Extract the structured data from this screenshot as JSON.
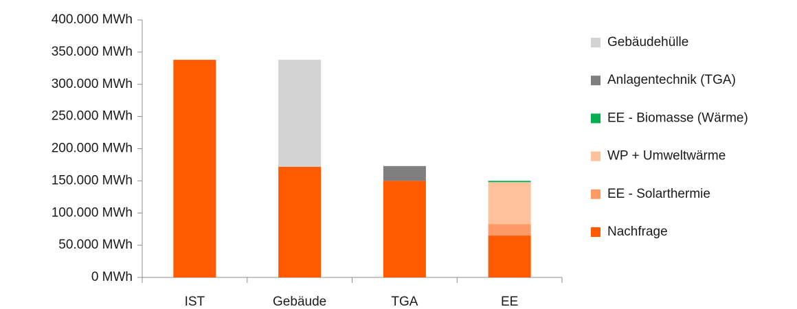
{
  "chart_data": {
    "type": "stacked_bar",
    "categories": [
      "IST",
      "Gebäude",
      "TGA",
      "EE"
    ],
    "series": [
      {
        "name": "Nachfrage",
        "color": "#ff5a00",
        "values": [
          338000,
          172000,
          150000,
          65000
        ]
      },
      {
        "name": "EE - Solarthermie",
        "color": "#ff9a66",
        "values": [
          null,
          null,
          null,
          18000
        ]
      },
      {
        "name": "WP + Umweltwärme",
        "color": "#ffc09c",
        "values": [
          null,
          null,
          null,
          65000
        ]
      },
      {
        "name": "EE - Biomasse (Wärme)",
        "color": "#00b050",
        "values": [
          null,
          null,
          null,
          2000
        ]
      },
      {
        "name": "Anlagentechnik (TGA)",
        "color": "#7f7f7f",
        "values": [
          null,
          null,
          23000,
          null
        ]
      },
      {
        "name": "Gebäudehülle",
        "color": "#d3d3d3",
        "values": [
          null,
          166000,
          null,
          null
        ]
      }
    ],
    "ylim": [
      0,
      400000
    ],
    "yticks": [
      {
        "value": 0,
        "label": "0 MWh"
      },
      {
        "value": 50000,
        "label": "50.000 MWh"
      },
      {
        "value": 100000,
        "label": "100.000 MWh"
      },
      {
        "value": 150000,
        "label": "150.000 MWh"
      },
      {
        "value": 200000,
        "label": "200.000 MWh"
      },
      {
        "value": 250000,
        "label": "250.000 MWh"
      },
      {
        "value": 300000,
        "label": "300.000 MWh"
      },
      {
        "value": 350000,
        "label": "350.000 MWh"
      },
      {
        "value": 400000,
        "label": "400.000 MWh"
      }
    ],
    "legend": "right"
  }
}
